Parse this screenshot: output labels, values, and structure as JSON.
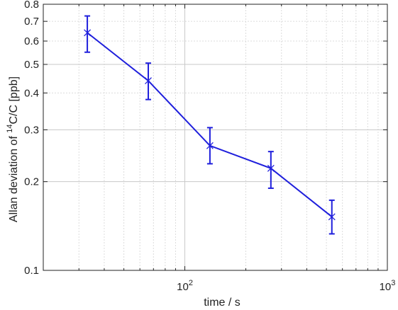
{
  "chart_data": {
    "type": "line",
    "title": "",
    "xlabel": "time / s",
    "ylabel_parts": {
      "prefix": "Allan deviation of ",
      "superscript": "14",
      "suffix": "C/C [ppb]"
    },
    "x_scale": "log",
    "y_scale": "log",
    "xlim": [
      20,
      1000
    ],
    "ylim": [
      0.1,
      0.8
    ],
    "grid": true,
    "grid_minor": true,
    "legend": "none",
    "x_ticks": [
      {
        "value": 100,
        "base": "10",
        "exp": "2"
      },
      {
        "value": 1000,
        "base": "10",
        "exp": "3"
      }
    ],
    "y_ticks": [
      {
        "value": 0.1,
        "label": "0.1"
      },
      {
        "value": 0.2,
        "label": "0.2"
      },
      {
        "value": 0.3,
        "label": "0.3"
      },
      {
        "value": 0.4,
        "label": "0.4"
      },
      {
        "value": 0.5,
        "label": "0.5"
      },
      {
        "value": 0.6,
        "label": "0.6"
      },
      {
        "value": 0.7,
        "label": "0.7"
      },
      {
        "value": 0.8,
        "label": "0.8"
      }
    ],
    "series": [
      {
        "color": "#1f1fdc",
        "marker": "x",
        "points": [
          {
            "x": 33,
            "y": 0.64,
            "yerr_low": 0.55,
            "yerr_high": 0.73
          },
          {
            "x": 66,
            "y": 0.44,
            "yerr_low": 0.38,
            "yerr_high": 0.505
          },
          {
            "x": 133,
            "y": 0.265,
            "yerr_low": 0.23,
            "yerr_high": 0.305
          },
          {
            "x": 266,
            "y": 0.222,
            "yerr_low": 0.19,
            "yerr_high": 0.253
          },
          {
            "x": 532,
            "y": 0.152,
            "yerr_low": 0.133,
            "yerr_high": 0.173
          }
        ]
      }
    ]
  }
}
